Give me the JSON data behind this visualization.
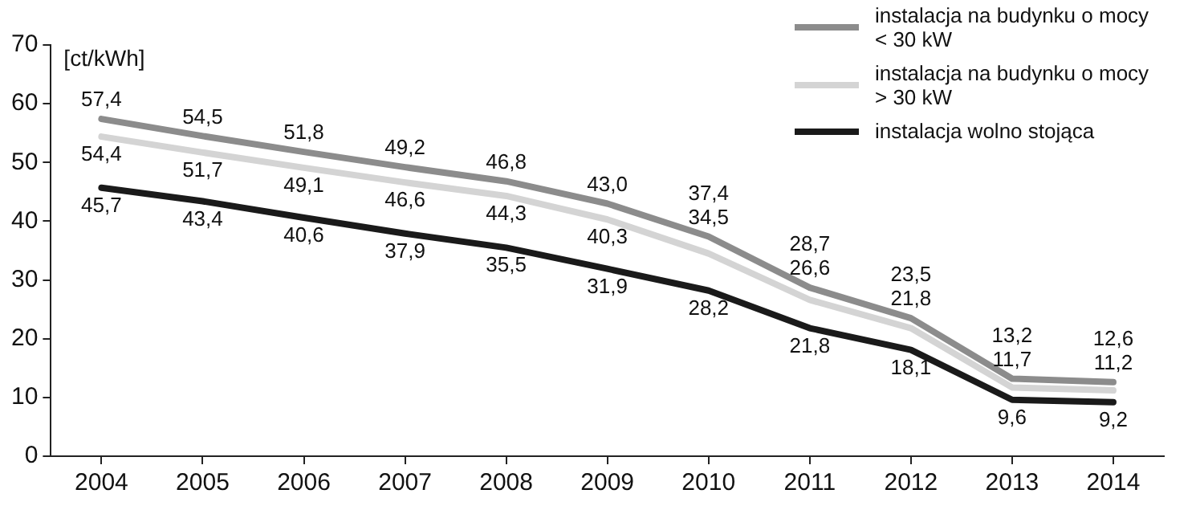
{
  "chart_data": {
    "type": "line",
    "ylabel": "[ct/kWh]",
    "categories": [
      "2004",
      "2005",
      "2006",
      "2007",
      "2008",
      "2009",
      "2010",
      "2011",
      "2012",
      "2013",
      "2014"
    ],
    "series": [
      {
        "name": "instalacja na budynku o mocy < 30 kW",
        "color": "#8c8c8c",
        "values": [
          57.4,
          54.5,
          51.8,
          49.2,
          46.8,
          43.0,
          37.4,
          28.7,
          23.5,
          13.2,
          12.6
        ],
        "value_labels": [
          "57,4",
          "54,5",
          "51,8",
          "49,2",
          "46,8",
          "43,0",
          "37,4",
          "28,7",
          "23,5",
          "13,2",
          "12,6"
        ]
      },
      {
        "name": "instalacja na budynku o mocy > 30 kW",
        "color": "#d4d4d4",
        "values": [
          54.4,
          51.7,
          49.1,
          46.6,
          44.3,
          40.3,
          34.5,
          26.6,
          21.8,
          11.7,
          11.2
        ],
        "value_labels": [
          "54,4",
          "51,7",
          "49,1",
          "46,6",
          "44,3",
          "40,3",
          "34,5",
          "26,6",
          "21,8",
          "11,7",
          "11,2"
        ]
      },
      {
        "name": "instalacja wolno stojąca",
        "color": "#1a1a1a",
        "values": [
          45.7,
          43.4,
          40.6,
          37.9,
          35.5,
          31.9,
          28.2,
          21.8,
          18.1,
          9.6,
          9.2
        ],
        "value_labels": [
          "45,7",
          "43,4",
          "40,6",
          "37,9",
          "35,5",
          "31,9",
          "28,2",
          "21,8",
          "18,1",
          "9,6",
          "9,2"
        ]
      }
    ],
    "ylim": [
      0,
      70
    ],
    "yticks": [
      0,
      10,
      20,
      30,
      40,
      50,
      60,
      70
    ],
    "grid": false,
    "legend": "top right",
    "marker": "none",
    "line_style": "solid"
  }
}
